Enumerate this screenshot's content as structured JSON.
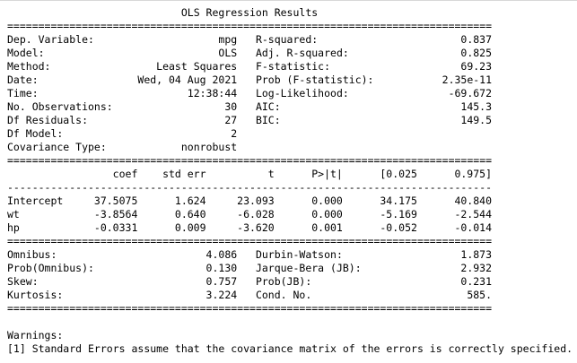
{
  "report": {
    "title": "OLS Regression Results",
    "separators": {
      "double": "==============================================================================",
      "single": "------------------------------------------------------------------------------"
    },
    "summary": {
      "left": [
        {
          "label": "Dep. Variable:",
          "value": "mpg"
        },
        {
          "label": "Model:",
          "value": "OLS"
        },
        {
          "label": "Method:",
          "value": "Least Squares"
        },
        {
          "label": "Date:",
          "value": "Wed, 04 Aug 2021"
        },
        {
          "label": "Time:",
          "value": "12:38:44"
        },
        {
          "label": "No. Observations:",
          "value": "30"
        },
        {
          "label": "Df Residuals:",
          "value": "27"
        },
        {
          "label": "Df Model:",
          "value": "2"
        },
        {
          "label": "Covariance Type:",
          "value": "nonrobust"
        }
      ],
      "right": [
        {
          "label": "R-squared:",
          "value": "0.837"
        },
        {
          "label": "Adj. R-squared:",
          "value": "0.825"
        },
        {
          "label": "F-statistic:",
          "value": "69.23"
        },
        {
          "label": "Prob (F-statistic):",
          "value": "2.35e-11"
        },
        {
          "label": "Log-Likelihood:",
          "value": "-69.672"
        },
        {
          "label": "AIC:",
          "value": "145.3"
        },
        {
          "label": "BIC:",
          "value": "149.5"
        },
        {
          "label": "",
          "value": ""
        },
        {
          "label": "",
          "value": ""
        }
      ]
    },
    "coefficients": {
      "headers": {
        "name": "",
        "coef": "coef",
        "std_err": "std err",
        "t": "t",
        "p": "P>|t|",
        "ci_low": "[0.025",
        "ci_high": "0.975]"
      },
      "rows": [
        {
          "name": "Intercept",
          "coef": "37.5075",
          "std_err": "1.624",
          "t": "23.093",
          "p": "0.000",
          "ci_low": "34.175",
          "ci_high": "40.840"
        },
        {
          "name": "wt",
          "coef": "-3.8564",
          "std_err": "0.640",
          "t": "-6.028",
          "p": "0.000",
          "ci_low": "-5.169",
          "ci_high": "-2.544"
        },
        {
          "name": "hp",
          "coef": "-0.0331",
          "std_err": "0.009",
          "t": "-3.620",
          "p": "0.001",
          "ci_low": "-0.052",
          "ci_high": "-0.014"
        }
      ]
    },
    "diagnostics": {
      "left": [
        {
          "label": "Omnibus:",
          "value": "4.086"
        },
        {
          "label": "Prob(Omnibus):",
          "value": "0.130"
        },
        {
          "label": "Skew:",
          "value": "0.757"
        },
        {
          "label": "Kurtosis:",
          "value": "3.224"
        }
      ],
      "right": [
        {
          "label": "Durbin-Watson:",
          "value": "1.873"
        },
        {
          "label": "Jarque-Bera (JB):",
          "value": "2.932"
        },
        {
          "label": "Prob(JB):",
          "value": "0.231"
        },
        {
          "label": "Cond. No.",
          "value": "585."
        }
      ]
    },
    "warnings": {
      "heading": "Warnings:",
      "items": [
        "[1] Standard Errors assume that the covariance matrix of the errors is correctly specified."
      ]
    }
  }
}
